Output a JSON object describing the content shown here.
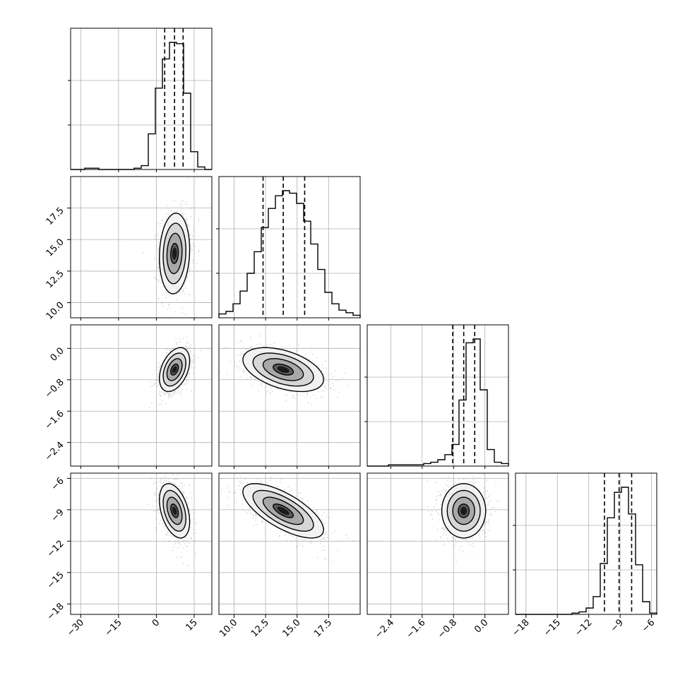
{
  "chart_data": {
    "type": "corner",
    "grid": true,
    "parameters": [
      {
        "lim": [
          -34,
          22
        ],
        "ticks": [
          -30,
          -15,
          0,
          15
        ],
        "tick_labels": [
          "−30",
          "−15",
          "0",
          "15"
        ],
        "median": 7.2,
        "q16": 3.3,
        "q84": 10.6,
        "hist": [
          0.0,
          0.0,
          0.01,
          0.01,
          0.0,
          0.0,
          0.0,
          0.0,
          0.0,
          0.01,
          0.03,
          0.28,
          0.64,
          0.87,
          1.0,
          0.99,
          0.6,
          0.14,
          0.02,
          0.0
        ]
      },
      {
        "lim": [
          8.8,
          20.0
        ],
        "ticks": [
          10.0,
          12.5,
          15.0,
          17.5
        ],
        "tick_labels": [
          "10.0",
          "12.5",
          "15.0",
          "17.5"
        ],
        "median": 13.9,
        "q16": 12.3,
        "q84": 15.6,
        "hist": [
          0.03,
          0.05,
          0.11,
          0.21,
          0.35,
          0.52,
          0.71,
          0.86,
          0.96,
          1.0,
          0.98,
          0.9,
          0.76,
          0.58,
          0.38,
          0.2,
          0.11,
          0.06,
          0.04,
          0.02
        ]
      },
      {
        "lim": [
          -3.0,
          0.6
        ],
        "ticks": [
          -2.4,
          -1.6,
          -0.8,
          0.0
        ],
        "tick_labels": [
          "−2.4",
          "−1.6",
          "−0.8",
          "0.0"
        ],
        "median": -0.54,
        "q16": -0.82,
        "q84": -0.26,
        "hist": [
          0.0,
          0.0,
          0.0,
          0.01,
          0.01,
          0.01,
          0.01,
          0.01,
          0.02,
          0.03,
          0.05,
          0.09,
          0.17,
          0.52,
          0.97,
          1.0,
          0.6,
          0.13,
          0.03,
          0.02
        ]
      },
      {
        "lim": [
          -19.0,
          -5.5
        ],
        "ticks": [
          -18,
          -15,
          -12,
          -9,
          -6
        ],
        "tick_labels": [
          "−18",
          "−15",
          "−12",
          "−9",
          "−6"
        ],
        "median": -9.1,
        "q16": -10.5,
        "q84": -7.9,
        "hist": [
          0.0,
          0.0,
          0.0,
          0.0,
          0.0,
          0.0,
          0.0,
          0.0,
          0.01,
          0.02,
          0.05,
          0.14,
          0.4,
          0.76,
          0.96,
          1.0,
          0.79,
          0.39,
          0.1,
          0.01
        ]
      }
    ],
    "pairs": [
      {
        "x": 0,
        "y": 1,
        "mean": [
          7.2,
          13.9
        ],
        "sd": [
          3.0,
          1.6
        ],
        "corr": 0.1
      },
      {
        "x": 0,
        "y": 2,
        "mean": [
          7.2,
          -0.54
        ],
        "sd": [
          3.0,
          0.28
        ],
        "corr": 0.4
      },
      {
        "x": 1,
        "y": 2,
        "mean": [
          13.9,
          -0.54
        ],
        "sd": [
          1.6,
          0.28
        ],
        "corr": -0.45
      },
      {
        "x": 0,
        "y": 3,
        "mean": [
          7.2,
          -9.1
        ],
        "sd": [
          3.0,
          1.3
        ],
        "corr": -0.4
      },
      {
        "x": 1,
        "y": 3,
        "mean": [
          13.9,
          -9.1
        ],
        "sd": [
          1.6,
          1.3
        ],
        "corr": -0.7
      },
      {
        "x": 2,
        "y": 3,
        "mean": [
          -0.54,
          -9.1
        ],
        "sd": [
          0.28,
          1.3
        ],
        "corr": 0.0
      }
    ],
    "contour_levels_sigma": [
      0.5,
      1.0,
      1.5,
      2.0
    ]
  }
}
